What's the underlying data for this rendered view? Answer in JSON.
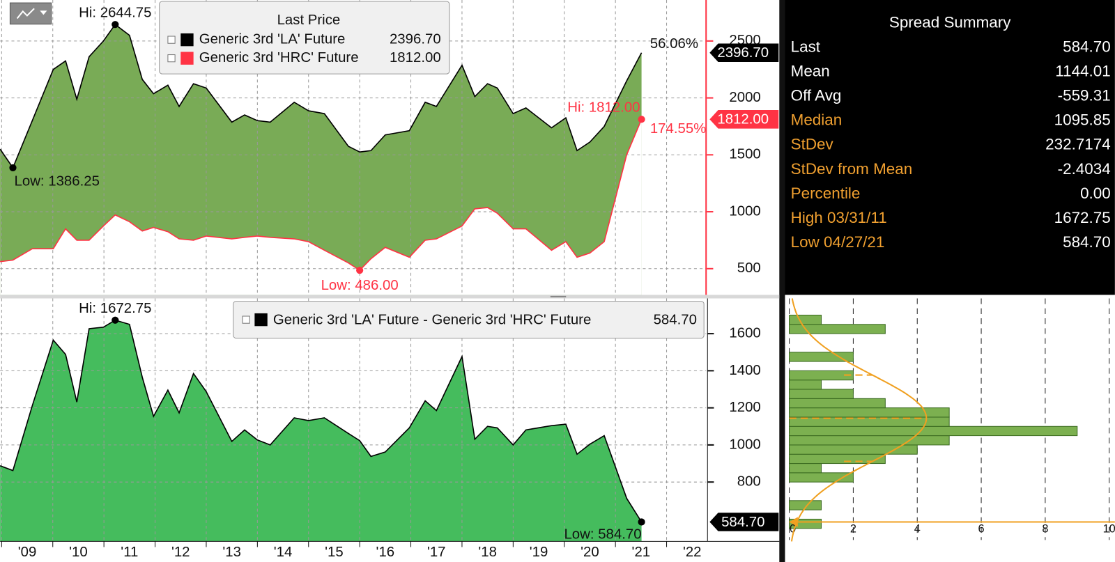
{
  "chart_data": [
    {
      "type": "line",
      "legend_title": "Last Price",
      "x": [
        2008.97,
        2009.22,
        2009.6,
        2010.01,
        2010.25,
        2010.47,
        2010.71,
        2010.99,
        2011.22,
        2011.5,
        2011.75,
        2011.97,
        2012.25,
        2012.47,
        2012.75,
        2013.0,
        2013.5,
        2013.75,
        2014.0,
        2014.25,
        2014.72,
        2015.0,
        2015.31,
        2015.78,
        2016.0,
        2016.22,
        2016.5,
        2016.97,
        2017.28,
        2017.5,
        2018.0,
        2018.25,
        2018.5,
        2018.69,
        2019.0,
        2019.25,
        2019.75,
        2020.03,
        2020.25,
        2020.5,
        2020.78,
        2021.22,
        2021.51
      ],
      "series": [
        {
          "name": "Generic 3rd 'LA' Future",
          "color": "#000000",
          "fill": "#79ab56",
          "last_label": "2396.70",
          "hi_label": "Hi: 2644.75",
          "low_label": "Low: 1386.25",
          "change_label": "56.06%",
          "values": [
            1550,
            1386.25,
            1800,
            2250,
            2325,
            1988,
            2362,
            2500,
            2644.75,
            2550,
            2162,
            2037,
            2112,
            1925,
            2125,
            2087,
            1787,
            1850,
            1800,
            1787,
            1962,
            1887,
            1862,
            1575,
            1525,
            1537,
            1675,
            1712,
            1962,
            1925,
            2287,
            2012,
            2125,
            2087,
            1862,
            1912,
            1737,
            1825,
            1537,
            1612,
            1750,
            2150,
            2396.7
          ]
        },
        {
          "name": "Generic 3rd 'HRC' Future",
          "color": "#ff3344",
          "fill": "#ffffff",
          "last_label": "1812.00",
          "hi_label": "Hi: 1812.00",
          "low_label": "Low: 486.00",
          "change_label": "174.55%",
          "values": [
            562,
            575,
            675,
            675,
            850,
            750,
            750,
            875,
            972,
            912,
            831,
            862,
            825,
            762,
            750,
            787,
            762,
            775,
            787,
            775,
            762,
            737,
            662,
            550,
            486,
            587,
            687,
            600,
            750,
            762,
            875,
            1025,
            1037,
            987,
            850,
            850,
            662,
            737,
            600,
            637,
            737,
            1500,
            1812
          ]
        }
      ],
      "xlim": [
        2008.97,
        2022.8
      ],
      "xticks": [
        2009,
        2010,
        2011,
        2012,
        2013,
        2014,
        2015,
        2016,
        2017,
        2018,
        2019,
        2020,
        2021,
        2022
      ],
      "ylim": [
        270,
        2860
      ],
      "yticks": [
        500,
        1000,
        1500,
        2000,
        2500
      ],
      "grid": true
    },
    {
      "type": "area",
      "x": [
        2008.97,
        2009.22,
        2009.6,
        2010.01,
        2010.25,
        2010.47,
        2010.71,
        2010.99,
        2011.22,
        2011.5,
        2011.75,
        2011.97,
        2012.25,
        2012.47,
        2012.75,
        2013.0,
        2013.5,
        2013.75,
        2014.0,
        2014.25,
        2014.72,
        2015.0,
        2015.31,
        2015.78,
        2016.0,
        2016.22,
        2016.5,
        2016.97,
        2017.28,
        2017.5,
        2018.0,
        2018.25,
        2018.5,
        2018.69,
        2019.0,
        2019.25,
        2019.75,
        2020.03,
        2020.25,
        2020.5,
        2020.78,
        2021.22,
        2021.51
      ],
      "series": [
        {
          "name": "Generic 3rd 'LA' Future - Generic 3rd 'HRC' Future",
          "color": "#000000",
          "fill": "#45bc5d",
          "last_label": "584.70",
          "hi_label": "Hi: 1672.75",
          "low_label": "Low: 584.70",
          "values": [
            888,
            862,
            1212,
            1565,
            1488,
            1231,
            1627,
            1635,
            1672.75,
            1650,
            1365,
            1154,
            1296,
            1173,
            1385,
            1288,
            1019,
            1081,
            1027,
            1000,
            1146,
            1131,
            1146,
            1062,
            1023,
            938,
            962,
            1092,
            1238,
            1185,
            1477,
            1031,
            1100,
            1092,
            1000,
            1081,
            1104,
            1112,
            950,
            1004,
            1050,
            712,
            584.7
          ]
        }
      ],
      "xlim": [
        2008.97,
        2022.8
      ],
      "xticks": [
        {
          "value": 2009,
          "label": "'09"
        },
        {
          "value": 2010,
          "label": "'10"
        },
        {
          "value": 2011,
          "label": "'11"
        },
        {
          "value": 2012,
          "label": "'12"
        },
        {
          "value": 2013,
          "label": "'13"
        },
        {
          "value": 2014,
          "label": "'14"
        },
        {
          "value": 2015,
          "label": "'15"
        },
        {
          "value": 2016,
          "label": "'16"
        },
        {
          "value": 2017,
          "label": "'17"
        },
        {
          "value": 2018,
          "label": "'18"
        },
        {
          "value": 2019,
          "label": "'19"
        },
        {
          "value": 2020,
          "label": "'20"
        },
        {
          "value": 2021,
          "label": "'21"
        },
        {
          "value": 2022,
          "label": "'22"
        }
      ],
      "ylim": [
        480,
        1790
      ],
      "yticks": [
        800,
        1000,
        1200,
        1400,
        1600
      ],
      "grid": true
    },
    {
      "type": "histogram",
      "orientation": "horizontal",
      "color": "#7cb050",
      "curve_color": "#f0a020",
      "bins": [
        550,
        600,
        650,
        700,
        750,
        800,
        850,
        900,
        950,
        1000,
        1050,
        1100,
        1150,
        1200,
        1250,
        1300,
        1350,
        1400,
        1450,
        1500,
        1550,
        1600,
        1650,
        1700
      ],
      "values": [
        1,
        0,
        1,
        0,
        0,
        2,
        1,
        3,
        4,
        5,
        9,
        5,
        5,
        3,
        2,
        1,
        2,
        0,
        2,
        0,
        0,
        3,
        1
      ],
      "xlim": [
        0,
        10
      ],
      "xticks": [
        0,
        2,
        4,
        6,
        8,
        10
      ],
      "ylim": [
        480,
        1790
      ],
      "grid": true
    }
  ],
  "summary": {
    "title": "Spread Summary",
    "rows": [
      {
        "label": "Last",
        "value": 584.7,
        "value_label": "584.70"
      },
      {
        "label": "Mean",
        "value": 1144.01
      },
      {
        "label": "Off Avg",
        "value": -559.31
      },
      {
        "label": "Median",
        "value": 1095.85
      },
      {
        "label": "StDev",
        "value": 232.7174
      },
      {
        "label": "StDev from Mean",
        "value": -2.4034
      },
      {
        "label": "Percentile",
        "value": 0,
        "value_label": "0.00"
      },
      {
        "label": "High 03/31/11",
        "value": 1672.75
      },
      {
        "label": "Low 04/27/21",
        "value": 584.7,
        "value_label": "584.70"
      }
    ]
  }
}
